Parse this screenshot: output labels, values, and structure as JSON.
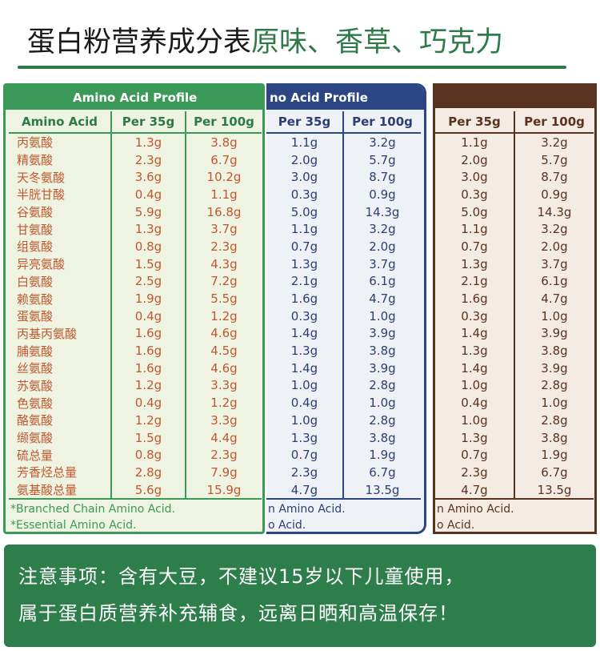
{
  "header": {
    "title_part1": "蛋白粉营养成分表",
    "title_part2": "原味、香草、巧克力"
  },
  "colors": {
    "accent_green": "#2f7a49",
    "panel1_border": "#3b9a57",
    "panel2_border": "#2b4682",
    "panel3_border": "#5a3320",
    "text_orange": "#c0582f"
  },
  "panel_original": {
    "title": "Amino Acid Profile",
    "col_name": "Amino Acid",
    "col_35": "Per 35g",
    "col_100": "Per 100g",
    "rows": [
      {
        "name": "丙氨酸",
        "v35": "1.3g",
        "v100": "3.8g"
      },
      {
        "name": "精氨酸",
        "v35": "2.3g",
        "v100": "6.7g"
      },
      {
        "name": "天冬氨酸",
        "v35": "3.6g",
        "v100": "10.2g"
      },
      {
        "name": "半胱甘酸",
        "v35": "0.4g",
        "v100": "1.1g"
      },
      {
        "name": "谷氨酸",
        "v35": "5.9g",
        "v100": "16.8g"
      },
      {
        "name": "甘氨酸",
        "v35": "1.3g",
        "v100": "3.7g"
      },
      {
        "name": "组氨酸",
        "v35": "0.8g",
        "v100": "2.3g"
      },
      {
        "name": "异亮氨酸",
        "v35": "1.5g",
        "v100": "4.3g"
      },
      {
        "name": "白氨酸",
        "v35": "2.5g",
        "v100": "7.2g"
      },
      {
        "name": "赖氨酸",
        "v35": "1.9g",
        "v100": "5.5g"
      },
      {
        "name": "蛋氨酸",
        "v35": "0.4g",
        "v100": "1.2g"
      },
      {
        "name": "丙基丙氨酸",
        "v35": "1.6g",
        "v100": "4.6g"
      },
      {
        "name": "脯氨酸",
        "v35": "1.6g",
        "v100": "4.5g"
      },
      {
        "name": "丝氨酸",
        "v35": "1.6g",
        "v100": "4.6g"
      },
      {
        "name": "苏氨酸",
        "v35": "1.2g",
        "v100": "3.3g"
      },
      {
        "name": "色氨酸",
        "v35": "0.4g",
        "v100": "1.2g"
      },
      {
        "name": "酪氨酸",
        "v35": "1.2g",
        "v100": "3.3g"
      },
      {
        "name": "缬氨酸",
        "v35": "1.5g",
        "v100": "4.4g"
      },
      {
        "name": "硫总量",
        "v35": "0.8g",
        "v100": "2.3g"
      },
      {
        "name": "芳香烃总量",
        "v35": "2.8g",
        "v100": "7.9g"
      },
      {
        "name": "氨基酸总量",
        "v35": "5.6g",
        "v100": "15.9g"
      }
    ],
    "foot1": "*Branched Chain Amino Acid.",
    "foot2": "*Essential Amino Acid."
  },
  "panel_vanilla": {
    "title": "no Acid Profile",
    "col_35": "Per 35g",
    "col_100": "Per 100g",
    "rows": [
      {
        "v35": "1.1g",
        "v100": "3.2g"
      },
      {
        "v35": "2.0g",
        "v100": "5.7g"
      },
      {
        "v35": "3.0g",
        "v100": "8.7g"
      },
      {
        "v35": "0.3g",
        "v100": "0.9g"
      },
      {
        "v35": "5.0g",
        "v100": "14.3g"
      },
      {
        "v35": "1.1g",
        "v100": "3.2g"
      },
      {
        "v35": "0.7g",
        "v100": "2.0g"
      },
      {
        "v35": "1.3g",
        "v100": "3.7g"
      },
      {
        "v35": "2.1g",
        "v100": "6.1g"
      },
      {
        "v35": "1.6g",
        "v100": "4.7g"
      },
      {
        "v35": "0.3g",
        "v100": "1.0g"
      },
      {
        "v35": "1.4g",
        "v100": "3.9g"
      },
      {
        "v35": "1.3g",
        "v100": "3.8g"
      },
      {
        "v35": "1.4g",
        "v100": "3.9g"
      },
      {
        "v35": "1.0g",
        "v100": "2.8g"
      },
      {
        "v35": "0.4g",
        "v100": "1.0g"
      },
      {
        "v35": "1.0g",
        "v100": "2.8g"
      },
      {
        "v35": "1.3g",
        "v100": "3.8g"
      },
      {
        "v35": "0.7g",
        "v100": "1.9g"
      },
      {
        "v35": "2.3g",
        "v100": "6.7g"
      },
      {
        "v35": "4.7g",
        "v100": "13.5g"
      }
    ],
    "foot1": "n Amino Acid.",
    "foot2": "o Acid."
  },
  "panel_chocolate": {
    "col_35": "Per 35g",
    "col_100": "Per 100g",
    "rows": [
      {
        "v35": "1.1g",
        "v100": "3.2g"
      },
      {
        "v35": "2.0g",
        "v100": "5.7g"
      },
      {
        "v35": "3.0g",
        "v100": "8.7g"
      },
      {
        "v35": "0.3g",
        "v100": "0.9g"
      },
      {
        "v35": "5.0g",
        "v100": "14.3g"
      },
      {
        "v35": "1.1g",
        "v100": "3.2g"
      },
      {
        "v35": "0.7g",
        "v100": "2.0g"
      },
      {
        "v35": "1.3g",
        "v100": "3.7g"
      },
      {
        "v35": "2.1g",
        "v100": "6.1g"
      },
      {
        "v35": "1.6g",
        "v100": "4.7g"
      },
      {
        "v35": "0.3g",
        "v100": "1.0g"
      },
      {
        "v35": "1.4g",
        "v100": "3.9g"
      },
      {
        "v35": "1.3g",
        "v100": "3.8g"
      },
      {
        "v35": "1.4g",
        "v100": "3.9g"
      },
      {
        "v35": "1.0g",
        "v100": "2.8g"
      },
      {
        "v35": "0.4g",
        "v100": "1.0g"
      },
      {
        "v35": "1.0g",
        "v100": "2.8g"
      },
      {
        "v35": "1.3g",
        "v100": "3.8g"
      },
      {
        "v35": "0.7g",
        "v100": "1.9g"
      },
      {
        "v35": "2.3g",
        "v100": "6.7g"
      },
      {
        "v35": "4.7g",
        "v100": "13.5g"
      }
    ],
    "foot1": "n Amino Acid.",
    "foot2": "o Acid."
  },
  "notice": {
    "line1": "注意事项：含有大豆，不建议15岁以下儿童使用，",
    "line2": "属于蛋白质营养补充辅食，远离日晒和高温保存！"
  }
}
